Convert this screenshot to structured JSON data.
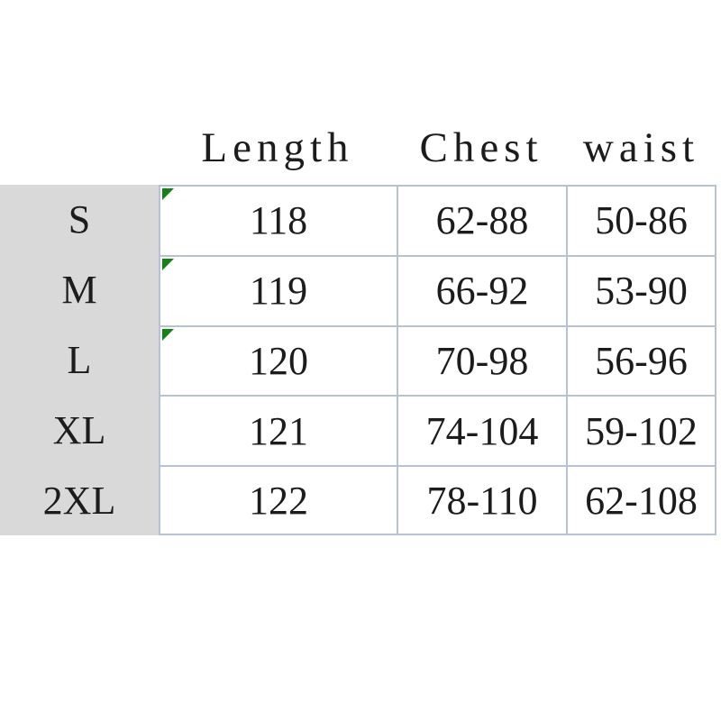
{
  "header": {
    "columns": [
      "Length",
      "Chest",
      "waist"
    ]
  },
  "table": {
    "rows": [
      {
        "size": "S",
        "length": "118",
        "chest": "62-88",
        "waist": "50-86",
        "has_flag": true
      },
      {
        "size": "M",
        "length": "119",
        "chest": "66-92",
        "waist": "53-90",
        "has_flag": true
      },
      {
        "size": "L",
        "length": "120",
        "chest": "70-98",
        "waist": "56-96",
        "has_flag": true
      },
      {
        "size": "XL",
        "length": "121",
        "chest": "74-104",
        "waist": "59-102",
        "has_flag": false
      },
      {
        "size": "2XL",
        "length": "122",
        "chest": "78-110",
        "waist": "62-108",
        "has_flag": false
      }
    ]
  },
  "chart_data": {
    "type": "table",
    "columns": [
      "",
      "Length",
      "Chest",
      "waist"
    ],
    "rows": [
      [
        "S",
        "118",
        "62-88",
        "50-86"
      ],
      [
        "M",
        "119",
        "66-92",
        "53-90"
      ],
      [
        "L",
        "120",
        "70-98",
        "56-96"
      ],
      [
        "XL",
        "121",
        "74-104",
        "59-102"
      ],
      [
        "2XL",
        "122",
        "78-110",
        "62-108"
      ]
    ]
  },
  "colors": {
    "background": "#ffffff",
    "row_label_bg": "#d9d9d9",
    "grid_border": "#b9c1d4",
    "flag_green": "#158215",
    "text": "#1c1c1c"
  }
}
